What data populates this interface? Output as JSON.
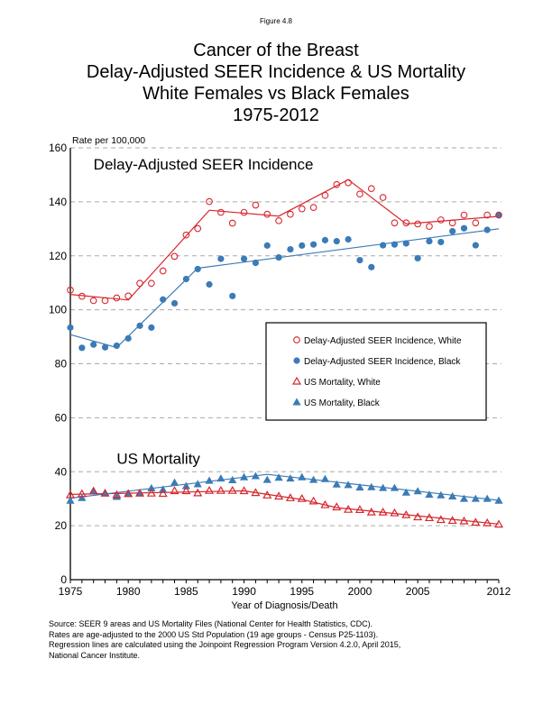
{
  "figure_label": "Figure 4.8",
  "title_lines": [
    "Cancer of the Breast",
    "Delay-Adjusted SEER Incidence & US Mortality",
    "White Females vs Black Females",
    "1975-2012"
  ],
  "footnotes": [
    "Source: SEER 9 areas and US Mortality Files (National Center for Health Statistics, CDC).",
    "Rates are age-adjusted to the 2000 US Std Population (19 age groups - Census P25-1103).",
    "Regression lines are calculated using the Joinpoint Regression Program Version 4.2.0, April 2015,",
    "National Cancer Institute."
  ],
  "colors": {
    "white": "#d7262d",
    "black": "#3b7bb6",
    "grid": "#aaaaaa"
  },
  "chart_data": {
    "type": "scatter",
    "title": "Cancer of the Breast — Delay-Adjusted SEER Incidence & US Mortality, White Females vs Black Females, 1975-2012",
    "xlabel": "Year of Diagnosis/Death",
    "ylabel": "Rate per 100,000",
    "xlim": [
      1975,
      2012
    ],
    "ylim": [
      0,
      160
    ],
    "xticks": [
      1975,
      1980,
      1985,
      1990,
      1995,
      2000,
      2005,
      2012
    ],
    "yticks": [
      0,
      20,
      40,
      60,
      80,
      100,
      120,
      140,
      160
    ],
    "grid": "horizontal dashed",
    "legend_position": "center-right",
    "annotations": [
      {
        "text": "Delay-Adjusted SEER Incidence",
        "x": 1977,
        "y": 152
      },
      {
        "text": "US Mortality",
        "x": 1979,
        "y": 43
      }
    ],
    "x": [
      1975,
      1976,
      1977,
      1978,
      1979,
      1980,
      1981,
      1982,
      1983,
      1984,
      1985,
      1986,
      1987,
      1988,
      1989,
      1990,
      1991,
      1992,
      1993,
      1994,
      1995,
      1996,
      1997,
      1998,
      1999,
      2000,
      2001,
      2002,
      2003,
      2004,
      2005,
      2006,
      2007,
      2008,
      2009,
      2010,
      2011,
      2012
    ],
    "series": [
      {
        "name": "Delay-Adjusted SEER Incidence, White",
        "marker": "open-circle",
        "color_key": "white",
        "values": [
          107.3,
          105.0,
          103.4,
          103.4,
          104.4,
          105.1,
          109.8,
          109.8,
          114.4,
          119.8,
          127.7,
          130.1,
          140.1,
          136.1,
          132.1,
          136.1,
          138.8,
          135.4,
          133.0,
          135.4,
          137.4,
          137.9,
          142.4,
          146.4,
          147.1,
          142.9,
          144.9,
          141.6,
          132.2,
          132.2,
          131.8,
          130.9,
          133.3,
          132.2,
          135.1,
          132.2,
          135.1,
          135.1
        ],
        "trend": [
          [
            1975,
            105.7
          ],
          [
            1980,
            103.6
          ],
          [
            1987,
            136.9
          ],
          [
            1993,
            134.7
          ],
          [
            1999,
            148.2
          ],
          [
            2004,
            131.8
          ],
          [
            2012,
            134.6
          ]
        ]
      },
      {
        "name": "Delay-Adjusted SEER Incidence, Black",
        "marker": "filled-circle",
        "color_key": "black",
        "values": [
          93.4,
          85.9,
          87.1,
          86.1,
          86.7,
          89.4,
          94.1,
          93.4,
          103.8,
          102.4,
          111.4,
          115.1,
          109.4,
          118.9,
          105.1,
          118.9,
          117.4,
          123.8,
          119.4,
          122.4,
          123.8,
          124.2,
          125.8,
          125.4,
          126.1,
          118.4,
          115.8,
          123.9,
          124.2,
          124.6,
          119.1,
          125.4,
          125.1,
          129.1,
          130.2,
          123.9,
          129.6,
          135.1
        ],
        "trend": [
          [
            1975,
            90.8
          ],
          [
            1979,
            86.0
          ],
          [
            1986,
            115.4
          ],
          [
            2012,
            130.0
          ]
        ]
      },
      {
        "name": "US Mortality, White",
        "marker": "open-triangle",
        "color_key": "white",
        "values": [
          31.4,
          31.8,
          32.8,
          32.0,
          31.4,
          31.8,
          32.0,
          32.0,
          31.9,
          32.9,
          32.9,
          32.1,
          33.0,
          33.0,
          33.0,
          32.9,
          32.2,
          31.3,
          30.9,
          30.3,
          30.0,
          29.1,
          27.7,
          26.9,
          26.0,
          25.9,
          25.0,
          25.0,
          24.7,
          24.0,
          23.2,
          22.9,
          22.2,
          21.9,
          21.7,
          21.2,
          21.0,
          20.5
        ],
        "trend": [
          [
            1975,
            31.6
          ],
          [
            1990,
            32.9
          ],
          [
            1995,
            29.7
          ],
          [
            1998,
            26.7
          ],
          [
            2012,
            20.6
          ]
        ]
      },
      {
        "name": "US Mortality, Black",
        "marker": "filled-triangle",
        "color_key": "black",
        "values": [
          29.3,
          30.3,
          32.8,
          32.0,
          30.7,
          32.0,
          32.0,
          33.9,
          33.4,
          36.0,
          34.7,
          35.4,
          36.7,
          37.5,
          36.9,
          38.0,
          38.4,
          37.0,
          37.8,
          37.5,
          38.0,
          37.0,
          37.3,
          35.3,
          35.1,
          34.2,
          34.3,
          34.0,
          34.0,
          32.3,
          32.8,
          31.5,
          31.3,
          30.9,
          30.0,
          30.0,
          30.0,
          29.3
        ],
        "trend": [
          [
            1975,
            30.2
          ],
          [
            1992,
            39.0
          ],
          [
            2012,
            29.4
          ]
        ]
      }
    ]
  }
}
